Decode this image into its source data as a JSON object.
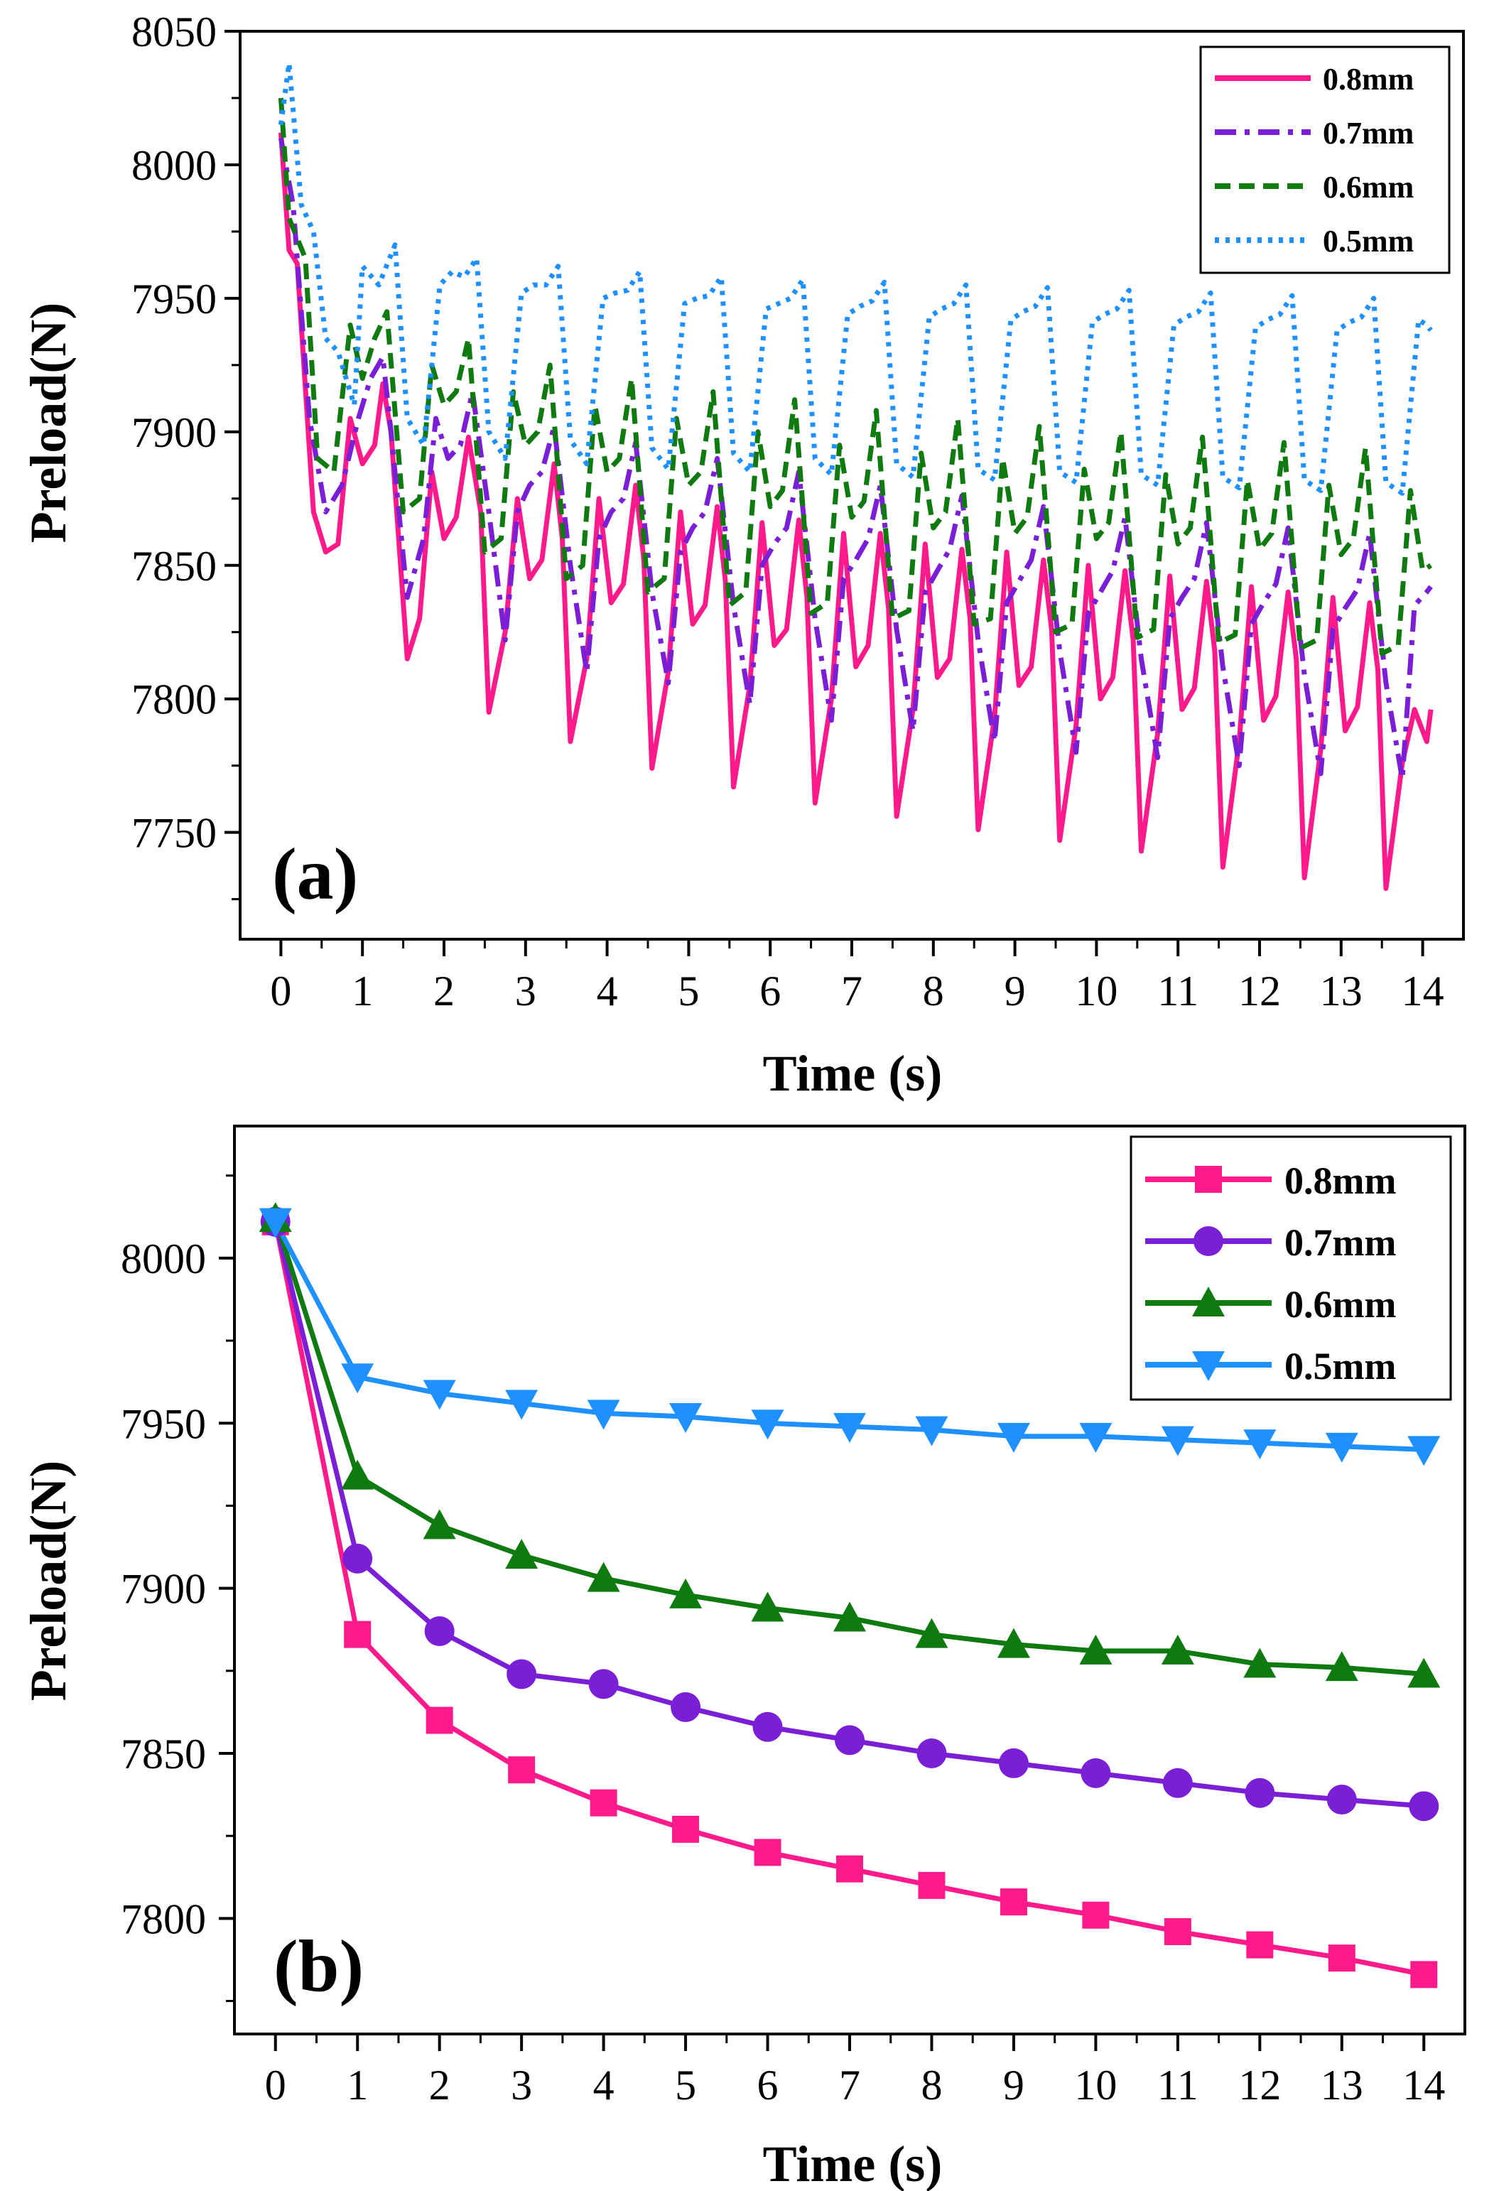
{
  "chart_data": [
    {
      "type": "line",
      "panel_label": "(a)",
      "xlabel": "Time (s)",
      "ylabel": "Preload(N)",
      "xlim": [
        -0.5,
        14.5
      ],
      "ylim": [
        7710,
        8050
      ],
      "xticks": [
        0,
        1,
        2,
        3,
        4,
        5,
        6,
        7,
        8,
        9,
        10,
        11,
        12,
        13,
        14
      ],
      "yticks": [
        7750,
        7800,
        7850,
        7900,
        7950,
        8000,
        8050
      ],
      "legend_position": "top-right",
      "legend_style": "box",
      "grid": false,
      "series": [
        {
          "name": "0.8mm",
          "color": "#ff1a8c",
          "dash": "solid",
          "x": [
            0,
            0.1,
            0.2,
            0.4,
            0.55,
            0.7,
            0.85,
            1.0,
            1.15,
            1.25,
            1.35,
            1.55,
            1.7,
            1.85,
            2.0,
            2.15,
            2.3,
            2.45,
            2.55,
            2.75,
            2.9,
            3.05,
            3.2,
            3.35,
            3.45,
            3.55,
            3.75,
            3.9,
            4.05,
            4.2,
            4.35,
            4.45,
            4.55,
            4.75,
            4.9,
            5.05,
            5.2,
            5.35,
            5.45,
            5.55,
            5.75,
            5.9,
            6.05,
            6.2,
            6.35,
            6.45,
            6.55,
            6.75,
            6.9,
            7.05,
            7.2,
            7.35,
            7.45,
            7.55,
            7.75,
            7.9,
            8.05,
            8.2,
            8.35,
            8.45,
            8.55,
            8.75,
            8.9,
            9.05,
            9.2,
            9.35,
            9.45,
            9.55,
            9.75,
            9.9,
            10.05,
            10.2,
            10.35,
            10.45,
            10.55,
            10.75,
            10.9,
            11.05,
            11.2,
            11.35,
            11.45,
            11.55,
            11.75,
            11.9,
            12.05,
            12.2,
            12.35,
            12.45,
            12.55,
            12.75,
            12.9,
            13.05,
            13.2,
            13.35,
            13.45,
            13.55,
            13.75,
            13.9,
            14.05,
            14.1
          ],
          "y": [
            8012,
            7968,
            7963,
            7870,
            7855,
            7858,
            7905,
            7888,
            7895,
            7918,
            7900,
            7815,
            7830,
            7885,
            7860,
            7868,
            7898,
            7870,
            7795,
            7825,
            7875,
            7845,
            7852,
            7888,
            7860,
            7784,
            7815,
            7875,
            7836,
            7843,
            7880,
            7852,
            7774,
            7810,
            7870,
            7828,
            7835,
            7872,
            7844,
            7767,
            7805,
            7866,
            7820,
            7826,
            7867,
            7838,
            7761,
            7800,
            7862,
            7812,
            7820,
            7862,
            7834,
            7756,
            7796,
            7858,
            7808,
            7815,
            7856,
            7830,
            7751,
            7793,
            7855,
            7805,
            7812,
            7852,
            7826,
            7747,
            7790,
            7850,
            7800,
            7808,
            7848,
            7822,
            7743,
            7787,
            7846,
            7796,
            7804,
            7844,
            7818,
            7737,
            7784,
            7842,
            7792,
            7801,
            7840,
            7815,
            7733,
            7781,
            7838,
            7788,
            7797,
            7836,
            7811,
            7729,
            7776,
            7796,
            7784,
            7796
          ]
        },
        {
          "name": "0.7mm",
          "color": "#7b1fd6",
          "dash": "dashdot",
          "x": [
            0,
            0.15,
            0.35,
            0.55,
            0.75,
            0.95,
            1.1,
            1.25,
            1.35,
            1.55,
            1.75,
            1.9,
            2.05,
            2.2,
            2.35,
            2.55,
            2.75,
            2.9,
            3.05,
            3.2,
            3.35,
            3.55,
            3.75,
            3.9,
            4.05,
            4.2,
            4.35,
            4.55,
            4.75,
            4.9,
            5.05,
            5.2,
            5.35,
            5.55,
            5.75,
            5.9,
            6.05,
            6.2,
            6.35,
            6.55,
            6.75,
            6.9,
            7.05,
            7.2,
            7.35,
            7.55,
            7.75,
            7.9,
            8.05,
            8.2,
            8.35,
            8.55,
            8.75,
            8.9,
            9.05,
            9.2,
            9.35,
            9.55,
            9.75,
            9.9,
            10.05,
            10.2,
            10.35,
            10.55,
            10.75,
            10.9,
            11.05,
            11.2,
            11.35,
            11.55,
            11.75,
            11.9,
            12.05,
            12.2,
            12.35,
            12.55,
            12.75,
            12.9,
            13.05,
            13.2,
            13.35,
            13.55,
            13.75,
            13.9,
            14.05,
            14.1
          ],
          "y": [
            8010,
            7985,
            7905,
            7870,
            7880,
            7905,
            7920,
            7928,
            7900,
            7838,
            7860,
            7905,
            7890,
            7895,
            7915,
            7870,
            7822,
            7870,
            7880,
            7885,
            7902,
            7850,
            7810,
            7860,
            7870,
            7875,
            7896,
            7840,
            7806,
            7855,
            7864,
            7870,
            7890,
            7835,
            7798,
            7850,
            7858,
            7864,
            7885,
            7830,
            7792,
            7845,
            7852,
            7860,
            7880,
            7826,
            7788,
            7840,
            7848,
            7856,
            7876,
            7822,
            7784,
            7836,
            7844,
            7852,
            7872,
            7818,
            7780,
            7832,
            7840,
            7848,
            7868,
            7815,
            7778,
            7830,
            7838,
            7845,
            7866,
            7812,
            7775,
            7828,
            7836,
            7843,
            7864,
            7809,
            7772,
            7826,
            7834,
            7841,
            7862,
            7806,
            7770,
            7835,
            7840,
            7842
          ]
        },
        {
          "name": "0.6mm",
          "color": "#0f7a0f",
          "dash": "dashed",
          "x": [
            0,
            0.1,
            0.3,
            0.45,
            0.65,
            0.85,
            1.0,
            1.15,
            1.3,
            1.5,
            1.7,
            1.85,
            2.0,
            2.15,
            2.3,
            2.5,
            2.7,
            2.85,
            3.0,
            3.15,
            3.3,
            3.5,
            3.7,
            3.85,
            4.0,
            4.15,
            4.3,
            4.5,
            4.7,
            4.85,
            5.0,
            5.15,
            5.3,
            5.5,
            5.7,
            5.85,
            6.0,
            6.15,
            6.3,
            6.5,
            6.7,
            6.85,
            7.0,
            7.15,
            7.3,
            7.5,
            7.7,
            7.85,
            8.0,
            8.15,
            8.3,
            8.5,
            8.7,
            8.85,
            9.0,
            9.15,
            9.3,
            9.5,
            9.7,
            9.85,
            10.0,
            10.15,
            10.3,
            10.5,
            10.7,
            10.85,
            11.0,
            11.15,
            11.3,
            11.5,
            11.7,
            11.85,
            12.0,
            12.15,
            12.3,
            12.5,
            12.7,
            12.85,
            13.0,
            13.15,
            13.3,
            13.5,
            13.7,
            13.85,
            14.0,
            14.1
          ],
          "y": [
            8025,
            7980,
            7965,
            7890,
            7885,
            7940,
            7920,
            7935,
            7945,
            7870,
            7875,
            7925,
            7910,
            7915,
            7935,
            7855,
            7860,
            7915,
            7895,
            7900,
            7925,
            7845,
            7850,
            7910,
            7885,
            7890,
            7920,
            7840,
            7845,
            7905,
            7880,
            7885,
            7915,
            7835,
            7840,
            7900,
            7872,
            7878,
            7912,
            7832,
            7836,
            7895,
            7868,
            7874,
            7908,
            7830,
            7833,
            7892,
            7864,
            7870,
            7905,
            7828,
            7830,
            7890,
            7862,
            7868,
            7902,
            7825,
            7828,
            7886,
            7860,
            7866,
            7900,
            7823,
            7826,
            7884,
            7858,
            7864,
            7898,
            7821,
            7824,
            7882,
            7856,
            7862,
            7896,
            7819,
            7822,
            7880,
            7854,
            7860,
            7894,
            7817,
            7820,
            7878,
            7848,
            7850
          ]
        },
        {
          "name": "0.5mm",
          "color": "#1e90ff",
          "dash": "dotted",
          "x": [
            0,
            0.1,
            0.25,
            0.4,
            0.55,
            0.7,
            0.9,
            1.0,
            1.2,
            1.4,
            1.55,
            1.75,
            1.95,
            2.1,
            2.25,
            2.4,
            2.55,
            2.75,
            2.95,
            3.1,
            3.25,
            3.4,
            3.55,
            3.75,
            3.95,
            4.1,
            4.25,
            4.4,
            4.55,
            4.75,
            4.95,
            5.1,
            5.25,
            5.4,
            5.55,
            5.75,
            5.95,
            6.1,
            6.25,
            6.4,
            6.55,
            6.75,
            6.95,
            7.1,
            7.25,
            7.4,
            7.55,
            7.75,
            7.95,
            8.1,
            8.25,
            8.4,
            8.55,
            8.75,
            8.95,
            9.1,
            9.25,
            9.4,
            9.55,
            9.75,
            9.95,
            10.1,
            10.25,
            10.4,
            10.55,
            10.75,
            10.95,
            11.1,
            11.25,
            11.4,
            11.55,
            11.75,
            11.95,
            12.1,
            12.25,
            12.4,
            12.55,
            12.75,
            12.95,
            13.1,
            13.25,
            13.4,
            13.55,
            13.75,
            13.95,
            14.05,
            14.1
          ],
          "y": [
            8015,
            8038,
            7985,
            7975,
            7935,
            7930,
            7910,
            7962,
            7955,
            7970,
            7905,
            7895,
            7955,
            7960,
            7958,
            7965,
            7900,
            7890,
            7952,
            7955,
            7955,
            7962,
            7897,
            7888,
            7950,
            7952,
            7953,
            7960,
            7894,
            7886,
            7948,
            7950,
            7951,
            7958,
            7892,
            7885,
            7946,
            7948,
            7950,
            7957,
            7890,
            7884,
            7944,
            7947,
            7949,
            7956,
            7888,
            7883,
            7943,
            7946,
            7948,
            7955,
            7886,
            7882,
            7942,
            7945,
            7947,
            7954,
            7885,
            7881,
            7941,
            7944,
            7946,
            7953,
            7884,
            7880,
            7940,
            7943,
            7945,
            7952,
            7883,
            7879,
            7939,
            7942,
            7944,
            7951,
            7882,
            7878,
            7938,
            7941,
            7943,
            7950,
            7881,
            7877,
            7942,
            7940,
            7938
          ]
        }
      ]
    },
    {
      "type": "line",
      "panel_label": "(b)",
      "xlabel": "Time (s)",
      "ylabel": "Preload(N)",
      "xlim": [
        -0.5,
        14.5
      ],
      "ylim": [
        7765,
        8040
      ],
      "xticks": [
        0,
        1,
        2,
        3,
        4,
        5,
        6,
        7,
        8,
        9,
        10,
        11,
        12,
        13,
        14
      ],
      "yticks": [
        7800,
        7850,
        7900,
        7950,
        8000
      ],
      "legend_position": "top-right",
      "legend_style": "box",
      "grid": false,
      "x": [
        0,
        1,
        2,
        3,
        4,
        5,
        6,
        7,
        8,
        9,
        10,
        11,
        12,
        13,
        14
      ],
      "series": [
        {
          "name": "0.8mm",
          "color": "#ff1a8c",
          "marker": "square",
          "values": [
            8011,
            7886,
            7860,
            7845,
            7835,
            7827,
            7820,
            7815,
            7810,
            7805,
            7801,
            7796,
            7792,
            7788,
            7783
          ]
        },
        {
          "name": "0.7mm",
          "color": "#7b1fd6",
          "marker": "circle",
          "values": [
            8011,
            7909,
            7887,
            7874,
            7871,
            7864,
            7858,
            7854,
            7850,
            7847,
            7844,
            7841,
            7838,
            7836,
            7834
          ]
        },
        {
          "name": "0.6mm",
          "color": "#0f7a0f",
          "marker": "triangle-up",
          "values": [
            8012,
            7934,
            7919,
            7910,
            7903,
            7898,
            7894,
            7891,
            7886,
            7883,
            7881,
            7881,
            7877,
            7876,
            7874
          ]
        },
        {
          "name": "0.5mm",
          "color": "#1e90ff",
          "marker": "triangle-down",
          "values": [
            8011,
            7964,
            7959,
            7956,
            7953,
            7952,
            7950,
            7949,
            7948,
            7946,
            7946,
            7945,
            7944,
            7943,
            7942
          ]
        }
      ]
    }
  ]
}
